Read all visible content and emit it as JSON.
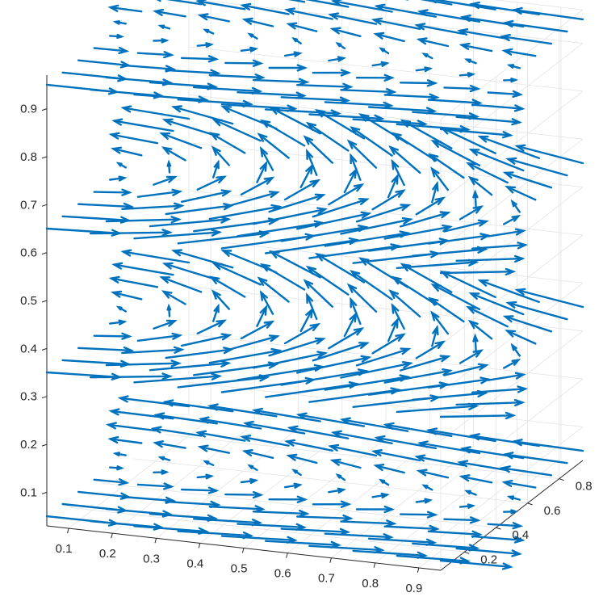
{
  "chart_data": {
    "type": "quiver3",
    "title": "",
    "xlabel": "",
    "ylabel": "",
    "zlabel": "",
    "grid": true,
    "color": "#0072bd",
    "xlim": [
      0.05,
      0.95
    ],
    "ylim": [
      0.05,
      0.95
    ],
    "zlim": [
      0.03,
      0.97
    ],
    "x_ticks": [
      "0.1",
      "0.2",
      "0.3",
      "0.4",
      "0.5",
      "0.6",
      "0.7",
      "0.8",
      "0.9"
    ],
    "y_ticks": [
      "0.2",
      "0.4",
      "0.6",
      "0.8"
    ],
    "z_ticks": [
      "0.1",
      "0.2",
      "0.3",
      "0.4",
      "0.5",
      "0.6",
      "0.7",
      "0.8",
      "0.9"
    ],
    "x_tick_values": [
      0.1,
      0.2,
      0.3,
      0.4,
      0.5,
      0.6,
      0.7,
      0.8,
      0.9
    ],
    "y_tick_values": [
      0.2,
      0.4,
      0.6,
      0.8
    ],
    "z_tick_values": [
      0.1,
      0.2,
      0.3,
      0.4,
      0.5,
      0.6,
      0.7,
      0.8,
      0.9
    ],
    "grid_x": [
      0.05,
      0.15,
      0.25,
      0.35,
      0.45,
      0.55,
      0.65,
      0.75,
      0.85,
      0.95
    ],
    "grid_y": [
      0.05,
      0.15,
      0.25,
      0.35,
      0.45,
      0.55,
      0.65,
      0.75,
      0.85,
      0.95
    ],
    "grid_z": [
      0.05,
      0.35,
      0.65,
      0.95
    ],
    "vector_field": "u = cos(pi*y); v = sin(pi*x)*sin(pi*z); w = 0.1*x*sin(pi*z)"
  }
}
